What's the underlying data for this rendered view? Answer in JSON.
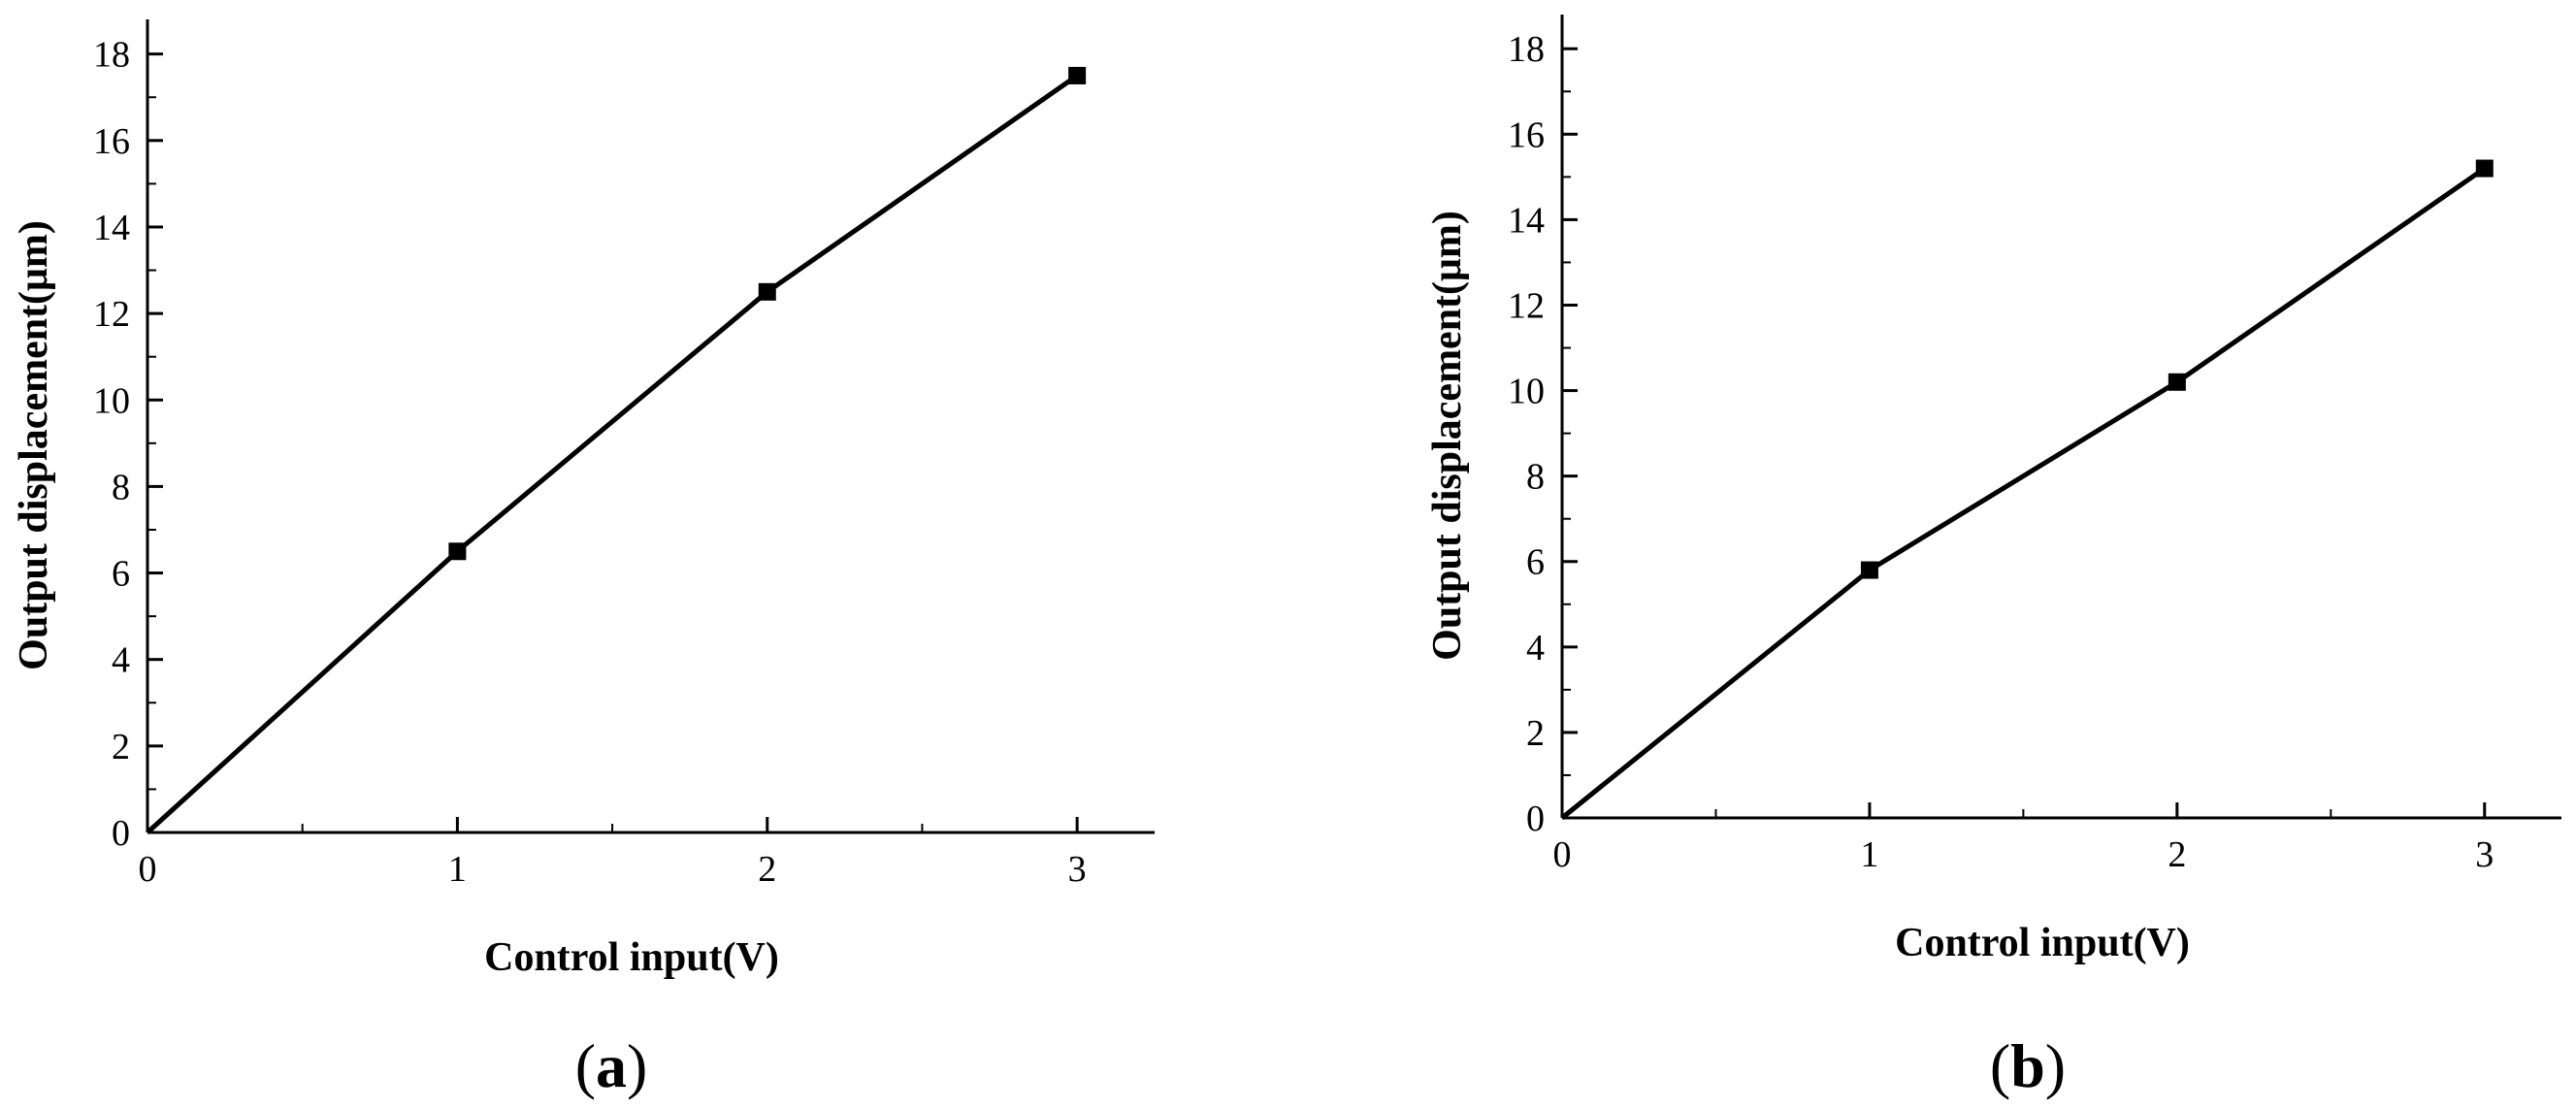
{
  "colors": {
    "line": "#000000",
    "marker": "#000000",
    "background": "#ffffff"
  },
  "chart_data": [
    {
      "type": "line",
      "panel": "a",
      "xlabel": "Control input(V)",
      "ylabel": "Output displacement(μm)",
      "xlim": [
        0,
        3.25
      ],
      "ylim": [
        0,
        18.8
      ],
      "x_ticks": [
        0,
        1,
        2,
        3
      ],
      "y_ticks": [
        0,
        2,
        4,
        6,
        8,
        10,
        12,
        14,
        16,
        18
      ],
      "grid": false,
      "series": [
        {
          "x": [
            0,
            1,
            2,
            3
          ],
          "y": [
            0,
            6.5,
            12.5,
            17.5
          ],
          "marker": "square",
          "color": "#000000"
        }
      ]
    },
    {
      "type": "line",
      "panel": "b",
      "xlabel": "Control input(V)",
      "ylabel": "Output displacement(μm)",
      "xlim": [
        0,
        3.25
      ],
      "ylim": [
        0,
        18.8
      ],
      "x_ticks": [
        0,
        1,
        2,
        3
      ],
      "y_ticks": [
        0,
        2,
        4,
        6,
        8,
        10,
        12,
        14,
        16,
        18
      ],
      "grid": false,
      "series": [
        {
          "x": [
            0,
            1,
            2,
            3
          ],
          "y": [
            0,
            5.8,
            10.2,
            15.2
          ],
          "marker": "square",
          "color": "#000000"
        }
      ]
    }
  ],
  "panel_labels": [
    {
      "open": "(",
      "letter": "a",
      "close": ")"
    },
    {
      "open": "(",
      "letter": "b",
      "close": ")"
    }
  ]
}
